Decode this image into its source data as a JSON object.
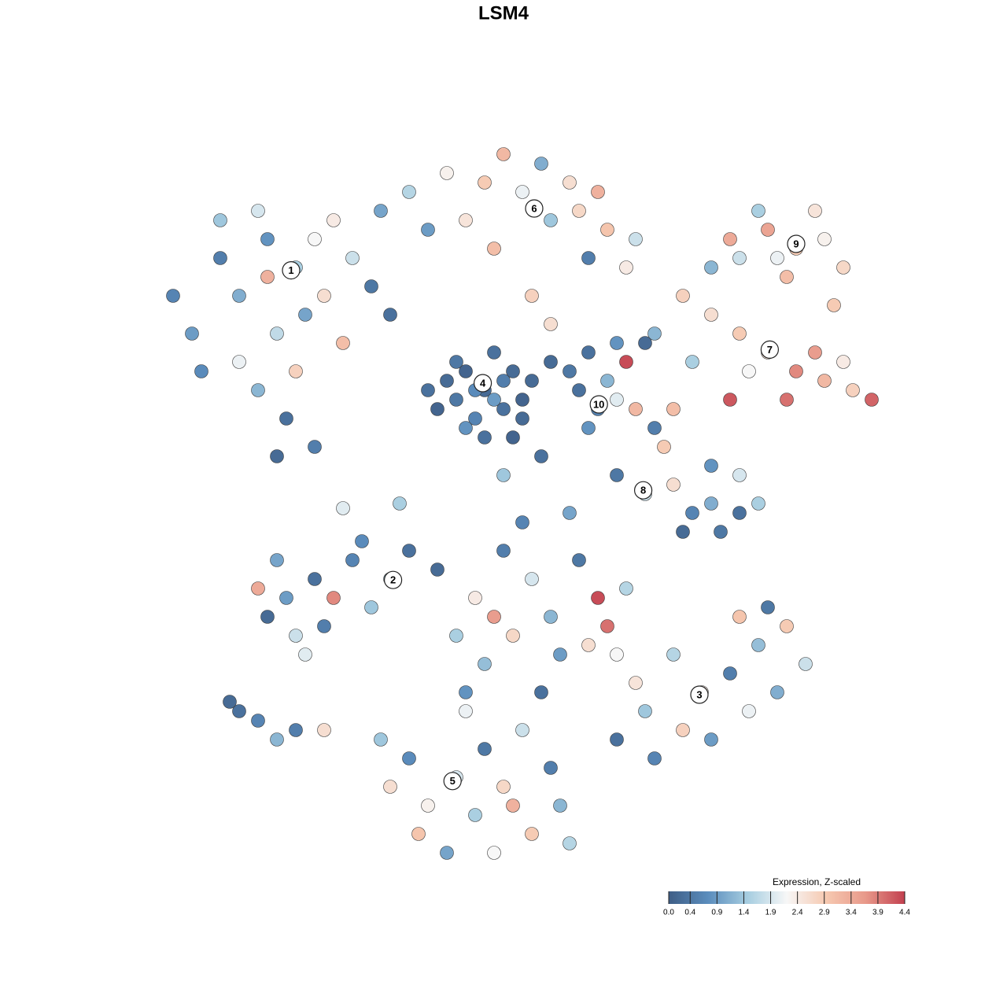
{
  "chart_data": {
    "type": "scatter",
    "title": "LSM4",
    "xlim": [
      -50,
      50
    ],
    "ylim": [
      -50,
      50
    ],
    "series": [
      {
        "name": "cells",
        "x": [
          -2,
          -4,
          0,
          -5,
          1,
          -3,
          2,
          -1,
          -6,
          -4,
          0,
          3,
          -2,
          -7,
          -1,
          2,
          -5,
          -3,
          1,
          -8,
          -22,
          -25,
          -19,
          -28,
          -30,
          -33,
          -24,
          -20,
          -26,
          -18,
          -30,
          -35,
          -22,
          -26,
          -23,
          -20,
          -24,
          -16,
          -14,
          -28,
          -17,
          -21,
          -32,
          -12,
          -25,
          -10,
          -6,
          -2,
          2,
          5,
          8,
          11,
          14,
          -8,
          -4,
          0,
          4,
          7,
          10,
          -13,
          13,
          3,
          5,
          -1,
          9,
          31,
          28,
          25,
          34,
          22,
          30,
          36,
          33,
          27,
          24,
          35,
          29,
          28,
          25,
          22,
          19,
          31,
          34,
          37,
          39,
          33,
          26,
          20,
          16,
          36,
          24,
          30,
          18,
          10,
          8,
          11,
          9,
          12,
          13,
          5,
          7,
          12,
          9,
          15,
          15,
          12,
          18,
          20,
          22,
          25,
          27,
          22,
          17,
          16,
          14,
          19,
          25,
          23,
          -12,
          -16,
          -20,
          -23,
          -25,
          -22,
          -19,
          -14,
          -10,
          -24,
          -18,
          -26,
          -21,
          -15,
          0,
          3,
          -3,
          5,
          8,
          10,
          11,
          -5,
          1,
          6,
          -2,
          4,
          9,
          13,
          -7,
          2,
          7,
          -1,
          12,
          -4,
          21,
          18,
          24,
          27,
          30,
          32,
          26,
          22,
          15,
          16,
          19,
          29,
          25,
          12,
          28,
          14,
          -5,
          -8,
          -3,
          0,
          3,
          6,
          -10,
          -12,
          -2,
          2,
          -6,
          -1,
          5,
          -9,
          -13,
          7,
          -4,
          1,
          -28,
          -26,
          -24,
          -22,
          -19,
          -29,
          -17,
          -11,
          0,
          4
        ],
        "y": [
          12,
          14,
          10,
          11,
          14,
          9,
          11,
          16,
          13,
          8,
          13,
          13,
          7,
          10,
          11,
          9,
          15,
          12,
          7,
          12,
          25,
          28,
          22,
          22,
          26,
          18,
          18,
          28,
          31,
          30,
          30,
          22,
          14,
          12,
          9,
          6,
          5,
          26,
          23,
          15,
          17,
          20,
          14,
          20,
          24,
          33,
          35,
          34,
          33,
          30,
          31,
          29,
          28,
          29,
          30,
          37,
          36,
          34,
          33,
          31,
          25,
          22,
          19,
          27,
          26,
          27,
          29,
          26,
          28,
          25,
          24,
          25,
          31,
          31,
          28,
          21,
          26,
          16,
          18,
          20,
          22,
          14,
          13,
          12,
          11,
          16,
          14,
          15,
          18,
          15,
          11,
          11,
          10,
          10,
          12,
          13,
          8,
          11,
          15,
          15,
          14,
          17,
          16,
          17,
          1,
          3,
          2,
          -1,
          0,
          -1,
          0,
          4,
          6,
          8,
          10,
          -3,
          3,
          -3,
          -8,
          -6,
          -8,
          -10,
          -12,
          -14,
          -13,
          -11,
          -5,
          -6,
          -10,
          -9,
          -16,
          -4,
          -5,
          -8,
          -10,
          -12,
          -6,
          -10,
          -13,
          -14,
          -14,
          -16,
          -17,
          -20,
          -15,
          -9,
          -7,
          -2,
          -1,
          -12,
          -16,
          -20,
          -20,
          -16,
          -18,
          -15,
          -13,
          -17,
          -22,
          -25,
          -22,
          -27,
          -24,
          -20,
          -12,
          -25,
          -11,
          -19,
          -29,
          -32,
          -33,
          -30,
          -35,
          -32,
          -27,
          -30,
          -26,
          -24,
          -37,
          -37,
          -28,
          -35,
          -25,
          -36,
          -22,
          -32,
          -22,
          -23,
          -25,
          -24,
          -24,
          -21,
          -0.5,
          0,
          3,
          5
        ],
        "values": [
          0.2,
          0.1,
          0.3,
          0.4,
          0.2,
          0.6,
          0.1,
          0.3,
          0.2,
          0.8,
          0.5,
          0.2,
          0.3,
          0.1,
          0.9,
          0.2,
          0.4,
          0.7,
          0.1,
          0.3,
          1.5,
          0.8,
          2.6,
          1.1,
          0.5,
          0.9,
          1.7,
          2.2,
          1.9,
          2.4,
          1.4,
          0.6,
          2.8,
          1.2,
          0.3,
          0.5,
          0.2,
          1.8,
          0.4,
          2.1,
          3.1,
          1.0,
          0.7,
          0.3,
          3.3,
          1.6,
          2.3,
          2.9,
          2.1,
          1.4,
          2.7,
          3.0,
          1.8,
          0.9,
          2.5,
          3.2,
          1.1,
          2.6,
          3.3,
          1.0,
          2.4,
          2.8,
          2.6,
          3.1,
          0.5,
          2.9,
          3.5,
          1.8,
          2.3,
          1.2,
          3.1,
          2.7,
          2.5,
          1.5,
          3.4,
          2.9,
          2.1,
          2.5,
          2.9,
          2.6,
          2.8,
          3.8,
          3.2,
          2.8,
          4.1,
          3.6,
          2.2,
          1.5,
          1.2,
          2.4,
          4.2,
          4.0,
          3.1,
          0.6,
          0.3,
          1.2,
          0.8,
          2.0,
          4.3,
          0.2,
          0.4,
          0.8,
          0.3,
          0.2,
          1.8,
          0.4,
          2.6,
          0.6,
          1.1,
          0.3,
          1.5,
          0.8,
          2.9,
          0.5,
          3.2,
          0.2,
          1.9,
          0.4,
          1.2,
          0.6,
          0.3,
          0.9,
          0.2,
          1.8,
          0.5,
          1.4,
          0.3,
          1.0,
          3.8,
          3.4,
          2.0,
          0.7,
          0.5,
          1.9,
          2.4,
          1.2,
          0.4,
          4.3,
          4.0,
          1.5,
          2.7,
          0.9,
          1.3,
          0.3,
          2.6,
          1.6,
          0.2,
          0.6,
          1.0,
          3.6,
          2.2,
          0.8,
          2.4,
          1.6,
          0.5,
          1.3,
          2.9,
          1.8,
          2.1,
          0.9,
          1.4,
          0.6,
          2.8,
          1.1,
          3.0,
          0.3,
          0.4,
          2.5,
          1.9,
          2.3,
          1.5,
          2.7,
          2.9,
          1.2,
          0.7,
          2.6,
          0.4,
          1.8,
          1.0,
          2.2,
          0.5,
          3.0,
          1.4,
          1.6,
          2.1,
          3.3,
          0.3,
          0.6,
          1.2,
          0.5,
          2.6,
          0.2,
          2.0,
          1.5,
          1.4,
          0.3
        ]
      }
    ],
    "cluster_labels": [
      {
        "text": "1",
        "x": -22.5,
        "y": 24.7
      },
      {
        "text": "2",
        "x": -11.7,
        "y": -8.1
      },
      {
        "text": "3",
        "x": 20.75,
        "y": -20.25
      },
      {
        "text": "4",
        "x": -2.2,
        "y": 12.75
      },
      {
        "text": "5",
        "x": -5.4,
        "y": -29.4
      },
      {
        "text": "6",
        "x": 3.25,
        "y": 31.25
      },
      {
        "text": "7",
        "x": 28.2,
        "y": 16.3
      },
      {
        "text": "8",
        "x": 14.8,
        "y": 1.4
      },
      {
        "text": "9",
        "x": 31,
        "y": 27.5
      },
      {
        "text": "10",
        "x": 10.1,
        "y": 10.5
      }
    ],
    "colorbar": {
      "title": "Expression, Z-scaled",
      "lim": [
        0,
        4.4
      ],
      "colors": [
        "#3f5e86",
        "#5b8dbd",
        "#a6cde0",
        "#f7f7f7",
        "#f6c9b1",
        "#e8998a",
        "#c2404f"
      ],
      "ticks": [
        {
          "value": 0,
          "label": "0.0"
        },
        0.4,
        0.9,
        1.4,
        1.9,
        2.4,
        2.9,
        3.4,
        3.9,
        4.4
      ]
    }
  }
}
